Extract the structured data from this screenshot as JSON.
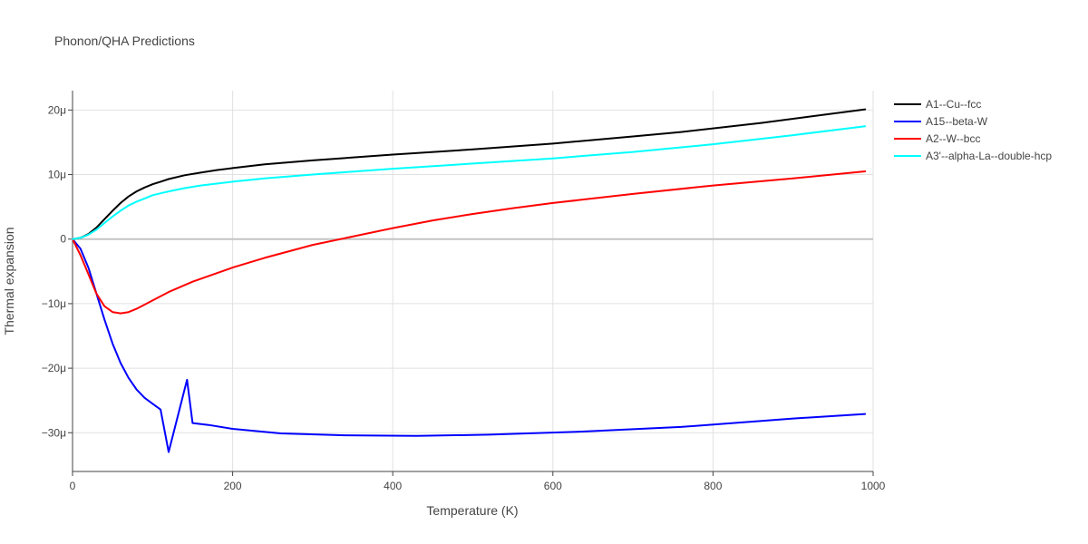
{
  "chart_data": {
    "type": "line",
    "title": "Phonon/QHA Predictions",
    "xlabel": "Temperature (K)",
    "ylabel": "Thermal expansion",
    "xlim": [
      0,
      1000
    ],
    "ylim": [
      -36,
      23
    ],
    "xticks": [
      0,
      200,
      400,
      600,
      800,
      1000
    ],
    "xtick_labels": [
      "0",
      "200",
      "400",
      "600",
      "800",
      "1000"
    ],
    "yticks": [
      -30,
      -20,
      -10,
      0,
      10,
      20
    ],
    "ytick_labels": [
      "−30μ",
      "−20μ",
      "−10μ",
      "0",
      "10μ",
      "20μ"
    ],
    "grid": true,
    "legend_position": "top-right",
    "series": [
      {
        "name": "A1--Cu--fcc",
        "color": "#000000",
        "x": [
          0,
          10,
          20,
          30,
          40,
          50,
          60,
          70,
          80,
          90,
          100,
          110,
          120,
          140,
          160,
          180,
          200,
          240,
          300,
          400,
          500,
          600,
          700,
          760,
          860,
          990
        ],
        "y": [
          0,
          0.2,
          0.8,
          1.8,
          3.1,
          4.4,
          5.6,
          6.6,
          7.4,
          8.0,
          8.5,
          8.9,
          9.3,
          9.9,
          10.3,
          10.7,
          11.0,
          11.6,
          12.2,
          13.1,
          13.9,
          14.8,
          15.9,
          16.6,
          18.0,
          20.1
        ]
      },
      {
        "name": "A15--beta-W",
        "color": "#0000ff",
        "x": [
          0,
          10,
          20,
          30,
          40,
          50,
          60,
          70,
          80,
          90,
          100,
          110,
          120,
          143,
          150,
          170,
          200,
          260,
          340,
          430,
          520,
          640,
          760,
          900,
          990
        ],
        "y": [
          0,
          -1.5,
          -4.5,
          -8.5,
          -12.5,
          -16.2,
          -19.2,
          -21.5,
          -23.3,
          -24.6,
          -25.5,
          -26.4,
          -33,
          -21.8,
          -28.5,
          -28.8,
          -29.4,
          -30.1,
          -30.4,
          -30.5,
          -30.3,
          -29.8,
          -29.1,
          -27.8,
          -27.1
        ]
      },
      {
        "name": "A2--W--bcc",
        "color": "#ff0000",
        "x": [
          0,
          10,
          20,
          30,
          40,
          50,
          60,
          70,
          80,
          100,
          120,
          150,
          200,
          240,
          300,
          350,
          400,
          450,
          500,
          550,
          600,
          700,
          800,
          900,
          990
        ],
        "y": [
          0,
          -2.5,
          -5.5,
          -8.5,
          -10.4,
          -11.3,
          -11.5,
          -11.3,
          -10.8,
          -9.5,
          -8.2,
          -6.6,
          -4.4,
          -2.9,
          -0.9,
          0.4,
          1.7,
          2.9,
          3.9,
          4.8,
          5.6,
          7.0,
          8.3,
          9.4,
          10.5
        ]
      },
      {
        "name": "A3'--alpha-La--double-hcp",
        "color": "#00ffff",
        "x": [
          0,
          10,
          20,
          30,
          40,
          50,
          60,
          70,
          80,
          90,
          100,
          110,
          120,
          140,
          160,
          180,
          200,
          240,
          300,
          400,
          500,
          600,
          700,
          800,
          900,
          990
        ],
        "y": [
          0,
          0.2,
          0.7,
          1.5,
          2.5,
          3.5,
          4.4,
          5.2,
          5.8,
          6.3,
          6.8,
          7.1,
          7.4,
          7.9,
          8.3,
          8.6,
          8.9,
          9.4,
          10.0,
          10.9,
          11.7,
          12.5,
          13.5,
          14.7,
          16.1,
          17.5
        ]
      }
    ]
  }
}
